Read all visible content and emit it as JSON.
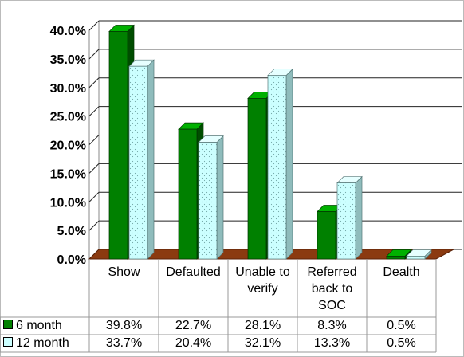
{
  "chart_data": {
    "type": "bar3d",
    "categories": [
      "Show",
      "Defaulted",
      "Unable to verify",
      "Referred back to SOC",
      "Dealth"
    ],
    "series": [
      {
        "name": "6 month",
        "color": "#008000",
        "values": [
          39.8,
          22.7,
          28.1,
          8.3,
          0.5
        ],
        "value_labels": [
          "39.8%",
          "22.7%",
          "28.1%",
          "8.3%",
          "0.5%"
        ]
      },
      {
        "name": "12 month",
        "color": "#ccffff",
        "values": [
          33.7,
          20.4,
          32.1,
          13.3,
          0.5
        ],
        "value_labels": [
          "33.7%",
          "20.4%",
          "32.1%",
          "13.3%",
          "0.5%"
        ]
      }
    ],
    "ylim": [
      0,
      40
    ],
    "yticks": [
      {
        "value": 0,
        "label": "0.0%"
      },
      {
        "value": 5,
        "label": "5.0%"
      },
      {
        "value": 10,
        "label": "10.0%"
      },
      {
        "value": 15,
        "label": "15.0%"
      },
      {
        "value": 20,
        "label": "20.0%"
      },
      {
        "value": 25,
        "label": "25.0%"
      },
      {
        "value": 30,
        "label": "30.0%"
      },
      {
        "value": 35,
        "label": "35.0%"
      },
      {
        "value": 40,
        "label": "40.0%"
      }
    ],
    "grid": true
  }
}
